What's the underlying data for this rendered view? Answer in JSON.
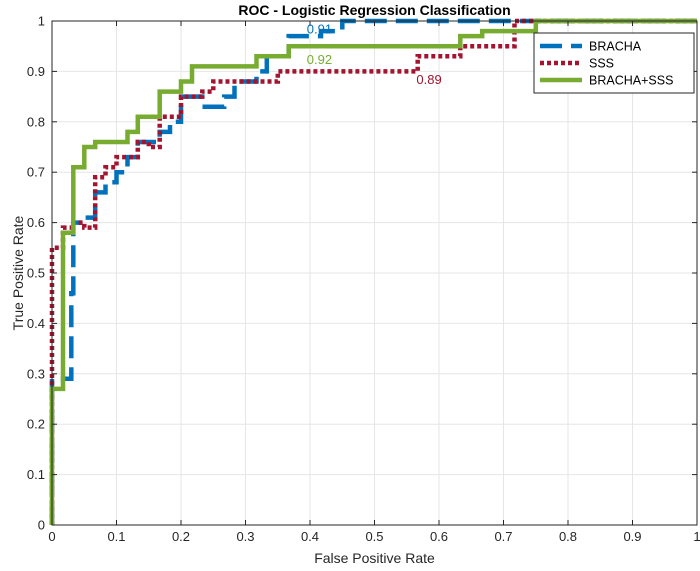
{
  "chart_data": {
    "type": "line",
    "title": "ROC - Logistic Regression Classification",
    "xlabel": "False Positive Rate",
    "ylabel": "True Positive Rate",
    "xlim": [
      0,
      1
    ],
    "ylim": [
      0,
      1
    ],
    "grid": true,
    "legend_position": "top-right",
    "xticks": [
      0,
      0.1,
      0.2,
      0.3,
      0.4,
      0.5,
      0.6,
      0.7,
      0.8,
      0.9,
      1
    ],
    "yticks": [
      0,
      0.1,
      0.2,
      0.3,
      0.4,
      0.5,
      0.6,
      0.7,
      0.8,
      0.9,
      1
    ],
    "xtick_labels": [
      "0",
      "0.1",
      "0.2",
      "0.3",
      "0.4",
      "0.5",
      "0.6",
      "0.7",
      "0.8",
      "0.9",
      "1"
    ],
    "ytick_labels": [
      "0",
      "0.1",
      "0.2",
      "0.3",
      "0.4",
      "0.5",
      "0.6",
      "0.7",
      "0.8",
      "0.9",
      "1"
    ],
    "series": [
      {
        "name": "BRACHA",
        "color": "#0072BD",
        "dash": "dashed",
        "auc_label": "0.91",
        "auc_label_at": [
          0.395,
          0.975
        ],
        "points": [
          [
            0,
            0
          ],
          [
            0,
            0.29
          ],
          [
            0.03,
            0.29
          ],
          [
            0.03,
            0.46
          ],
          [
            0.033,
            0.46
          ],
          [
            0.033,
            0.6
          ],
          [
            0.05,
            0.6
          ],
          [
            0.05,
            0.61
          ],
          [
            0.067,
            0.61
          ],
          [
            0.067,
            0.66
          ],
          [
            0.083,
            0.66
          ],
          [
            0.083,
            0.68
          ],
          [
            0.1,
            0.68
          ],
          [
            0.1,
            0.7
          ],
          [
            0.117,
            0.7
          ],
          [
            0.117,
            0.73
          ],
          [
            0.133,
            0.73
          ],
          [
            0.133,
            0.76
          ],
          [
            0.167,
            0.76
          ],
          [
            0.167,
            0.78
          ],
          [
            0.183,
            0.78
          ],
          [
            0.183,
            0.8
          ],
          [
            0.2,
            0.8
          ],
          [
            0.2,
            0.85
          ],
          [
            0.233,
            0.85
          ],
          [
            0.233,
            0.83
          ],
          [
            0.267,
            0.83
          ],
          [
            0.267,
            0.85
          ],
          [
            0.283,
            0.85
          ],
          [
            0.283,
            0.88
          ],
          [
            0.317,
            0.88
          ],
          [
            0.317,
            0.9
          ],
          [
            0.333,
            0.9
          ],
          [
            0.333,
            0.93
          ],
          [
            0.367,
            0.93
          ],
          [
            0.367,
            0.97
          ],
          [
            0.417,
            0.97
          ],
          [
            0.417,
            0.98
          ],
          [
            0.45,
            0.98
          ],
          [
            0.45,
            1.0
          ],
          [
            0.7,
            1.0
          ],
          [
            0.7,
            1.0
          ],
          [
            1.0,
            1.0
          ]
        ]
      },
      {
        "name": "SSS",
        "color": "#A2142F",
        "dash": "dotted",
        "auc_label": "0.89",
        "auc_label_at": [
          0.565,
          0.875
        ],
        "points": [
          [
            0,
            0
          ],
          [
            0,
            0.28
          ],
          [
            0.0,
            0.55
          ],
          [
            0.017,
            0.55
          ],
          [
            0.017,
            0.59
          ],
          [
            0.033,
            0.59
          ],
          [
            0.033,
            0.6
          ],
          [
            0.05,
            0.6
          ],
          [
            0.05,
            0.59
          ],
          [
            0.067,
            0.59
          ],
          [
            0.067,
            0.69
          ],
          [
            0.083,
            0.69
          ],
          [
            0.083,
            0.71
          ],
          [
            0.1,
            0.71
          ],
          [
            0.1,
            0.73
          ],
          [
            0.133,
            0.73
          ],
          [
            0.133,
            0.76
          ],
          [
            0.15,
            0.76
          ],
          [
            0.15,
            0.75
          ],
          [
            0.167,
            0.75
          ],
          [
            0.167,
            0.81
          ],
          [
            0.2,
            0.81
          ],
          [
            0.2,
            0.85
          ],
          [
            0.233,
            0.85
          ],
          [
            0.233,
            0.86
          ],
          [
            0.25,
            0.86
          ],
          [
            0.25,
            0.88
          ],
          [
            0.35,
            0.88
          ],
          [
            0.35,
            0.9
          ],
          [
            0.567,
            0.9
          ],
          [
            0.567,
            0.93
          ],
          [
            0.633,
            0.93
          ],
          [
            0.633,
            0.95
          ],
          [
            0.717,
            0.95
          ],
          [
            0.717,
            1.0
          ],
          [
            1.0,
            1.0
          ]
        ]
      },
      {
        "name": "BRACHA+SSS",
        "color": "#77AC30",
        "dash": "solid",
        "auc_label": "0.92",
        "auc_label_at": [
          0.395,
          0.915
        ],
        "points": [
          [
            0,
            0
          ],
          [
            0,
            0.27
          ],
          [
            0.017,
            0.27
          ],
          [
            0.017,
            0.58
          ],
          [
            0.033,
            0.58
          ],
          [
            0.033,
            0.71
          ],
          [
            0.05,
            0.71
          ],
          [
            0.05,
            0.75
          ],
          [
            0.067,
            0.75
          ],
          [
            0.067,
            0.76
          ],
          [
            0.117,
            0.76
          ],
          [
            0.117,
            0.78
          ],
          [
            0.133,
            0.78
          ],
          [
            0.133,
            0.81
          ],
          [
            0.167,
            0.81
          ],
          [
            0.167,
            0.86
          ],
          [
            0.2,
            0.86
          ],
          [
            0.2,
            0.88
          ],
          [
            0.217,
            0.88
          ],
          [
            0.217,
            0.91
          ],
          [
            0.317,
            0.91
          ],
          [
            0.317,
            0.93
          ],
          [
            0.367,
            0.93
          ],
          [
            0.367,
            0.95
          ],
          [
            0.633,
            0.95
          ],
          [
            0.633,
            0.97
          ],
          [
            0.667,
            0.97
          ],
          [
            0.667,
            0.98
          ],
          [
            0.75,
            0.98
          ],
          [
            0.75,
            1.0
          ],
          [
            1.0,
            1.0
          ]
        ]
      }
    ]
  }
}
